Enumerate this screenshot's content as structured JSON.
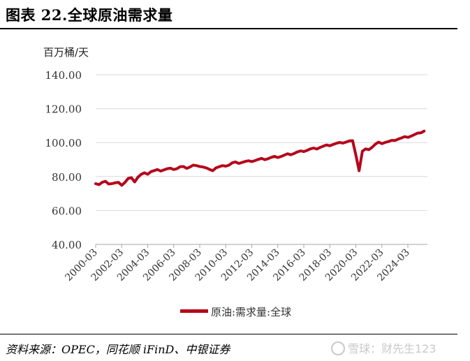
{
  "header": {
    "title": "图表 22.全球原油需求量"
  },
  "footer": {
    "source": "资料来源：OPEC，同花顺 iFinD、中银证券",
    "watermark": "雪球：财先生123"
  },
  "chart_data": {
    "type": "line",
    "title": "",
    "xlabel": "",
    "ylabel": "百万桶/天",
    "ylim": [
      40,
      140
    ],
    "yticks": [
      "40.00",
      "60.00",
      "80.00",
      "100.00",
      "120.00",
      "140.00"
    ],
    "xticks": [
      "2000-03",
      "2002-03",
      "2004-03",
      "2006-03",
      "2008-03",
      "2010-03",
      "2012-03",
      "2014-03",
      "2016-03",
      "2018-03",
      "2020-03",
      "2022-03",
      "2024-03"
    ],
    "grid": "horizontal",
    "legend": "bottom-center",
    "color": "#b5061b",
    "series": [
      {
        "name": "原油:需求量:全球",
        "x": [
          "2000-03",
          "2000-06",
          "2000-09",
          "2000-12",
          "2001-03",
          "2001-06",
          "2001-09",
          "2001-12",
          "2002-03",
          "2002-06",
          "2002-09",
          "2002-12",
          "2003-03",
          "2003-06",
          "2003-09",
          "2003-12",
          "2004-03",
          "2004-06",
          "2004-09",
          "2004-12",
          "2005-03",
          "2005-06",
          "2005-09",
          "2005-12",
          "2006-03",
          "2006-06",
          "2006-09",
          "2006-12",
          "2007-03",
          "2007-06",
          "2007-09",
          "2007-12",
          "2008-03",
          "2008-06",
          "2008-09",
          "2008-12",
          "2009-03",
          "2009-06",
          "2009-09",
          "2009-12",
          "2010-03",
          "2010-06",
          "2010-09",
          "2010-12",
          "2011-03",
          "2011-06",
          "2011-09",
          "2011-12",
          "2012-03",
          "2012-06",
          "2012-09",
          "2012-12",
          "2013-03",
          "2013-06",
          "2013-09",
          "2013-12",
          "2014-03",
          "2014-06",
          "2014-09",
          "2014-12",
          "2015-03",
          "2015-06",
          "2015-09",
          "2015-12",
          "2016-03",
          "2016-06",
          "2016-09",
          "2016-12",
          "2017-03",
          "2017-06",
          "2017-09",
          "2017-12",
          "2018-03",
          "2018-06",
          "2018-09",
          "2018-12",
          "2019-03",
          "2019-06",
          "2019-09",
          "2019-12",
          "2020-03",
          "2020-06",
          "2020-09",
          "2020-12",
          "2021-03",
          "2021-06",
          "2021-09",
          "2021-12",
          "2022-03",
          "2022-06",
          "2022-09",
          "2022-12",
          "2023-03",
          "2023-06",
          "2023-09",
          "2023-12",
          "2024-03",
          "2024-06",
          "2024-09",
          "2024-12",
          "2025-03",
          "2025-06"
        ],
        "values": [
          75.8,
          75.2,
          76.6,
          77.2,
          75.6,
          75.8,
          76.3,
          76.6,
          74.8,
          76.5,
          78.9,
          79.3,
          76.8,
          79.6,
          81.3,
          82.2,
          81.3,
          82.9,
          83.5,
          84.1,
          83.2,
          83.9,
          84.6,
          84.9,
          84.1,
          84.6,
          85.8,
          85.9,
          84.8,
          85.6,
          86.7,
          86.4,
          85.9,
          85.6,
          85.1,
          84.2,
          83.4,
          85.1,
          85.8,
          86.4,
          86.1,
          86.7,
          88.1,
          88.6,
          87.7,
          88.3,
          88.9,
          89.3,
          88.8,
          89.4,
          90.1,
          90.7,
          89.9,
          90.5,
          91.3,
          91.9,
          91.2,
          91.8,
          92.6,
          93.4,
          92.8,
          93.6,
          94.5,
          95.1,
          94.7,
          95.4,
          96.3,
          96.8,
          96.2,
          97.1,
          97.9,
          98.6,
          98.1,
          98.9,
          99.6,
          100.1,
          99.7,
          100.3,
          101.0,
          101.1,
          92.8,
          83.4,
          94.9,
          96.3,
          95.8,
          97.2,
          99.1,
          100.3,
          99.4,
          100.1,
          100.6,
          101.3,
          101.2,
          102.0,
          102.7,
          103.5,
          103.1,
          103.8,
          104.7,
          105.6,
          105.7,
          106.8
        ]
      }
    ]
  }
}
